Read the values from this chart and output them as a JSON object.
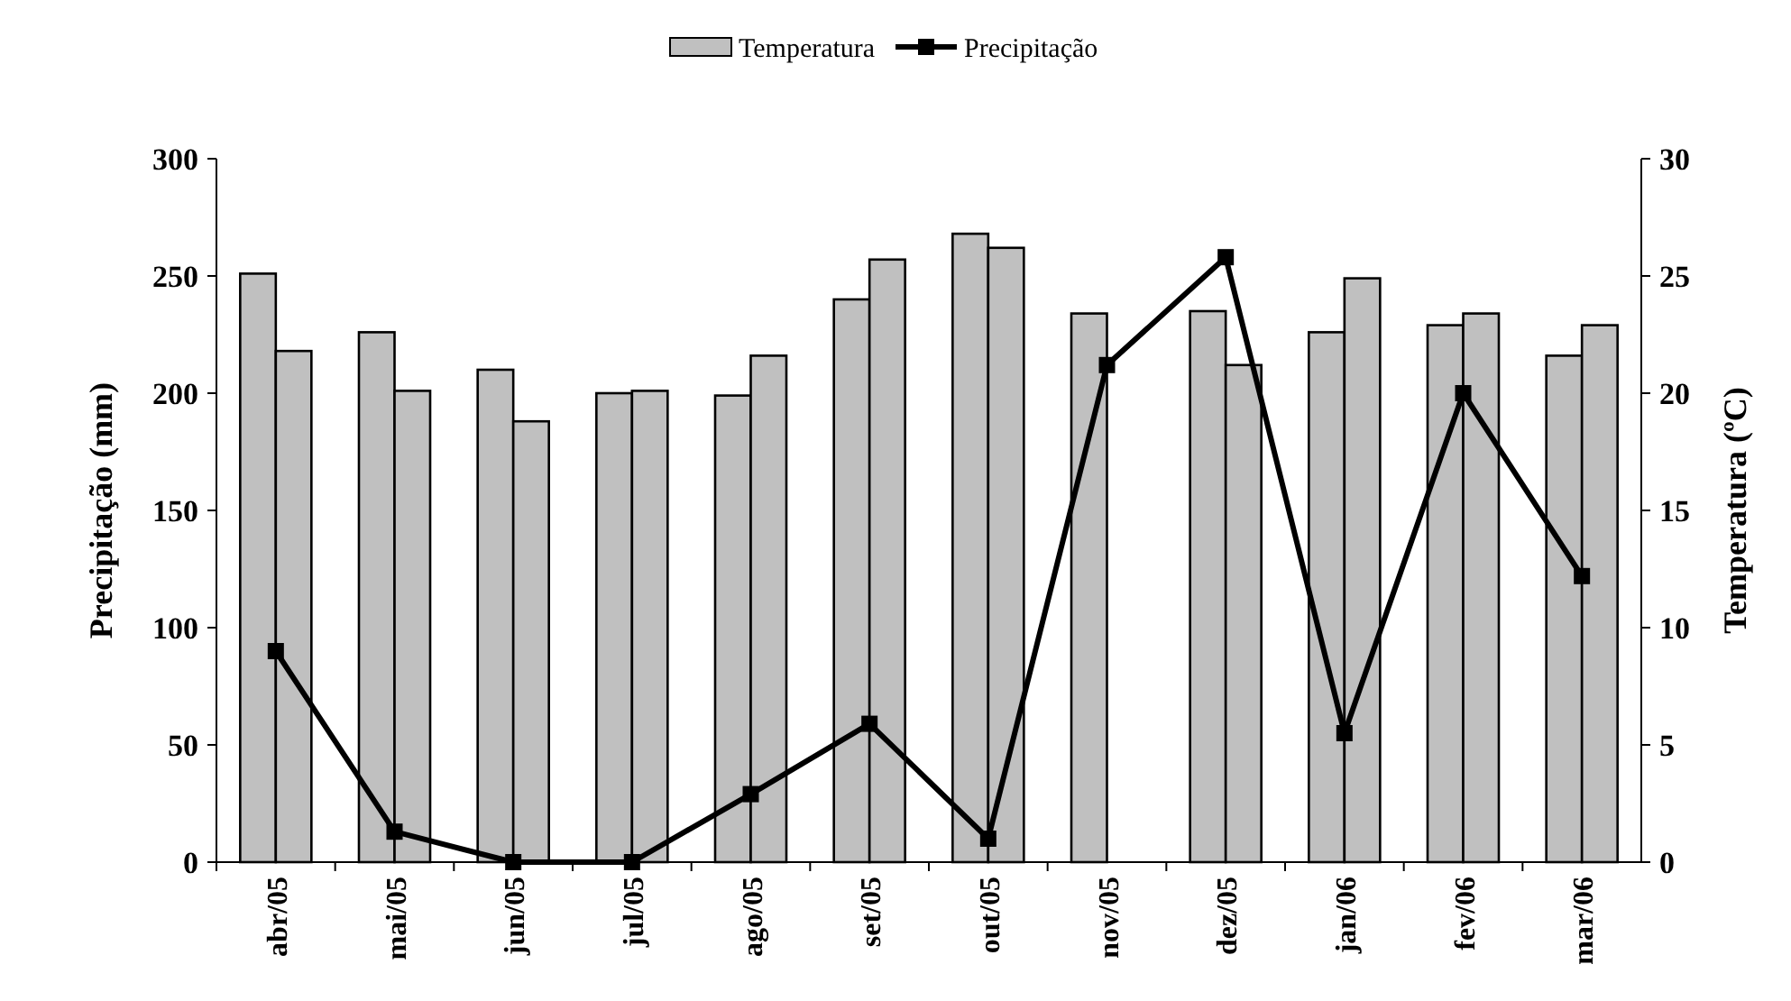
{
  "chart_data": {
    "type": "bar",
    "categories": [
      "abr/05",
      "mai/05",
      "jun/05",
      "jul/05",
      "ago/05",
      "set/05",
      "out/05",
      "nov/05",
      "dez/05",
      "jan/06",
      "fev/06",
      "mar/06"
    ],
    "series": [
      {
        "name": "Temperatura",
        "axis": "y2",
        "color": "#c0c0c0",
        "values": [
          25.1,
          22.6,
          21.0,
          20.0,
          19.9,
          24.0,
          26.8,
          23.4,
          23.5,
          22.6,
          22.9,
          21.6
        ]
      },
      {
        "axis": "y2",
        "color": "#c0c0c0",
        "values": [
          21.8,
          20.1,
          18.8,
          20.1,
          21.6,
          25.7,
          26.2,
          null,
          21.2,
          24.9,
          23.4,
          22.9
        ]
      },
      {
        "name": "Precipitação",
        "type": "line",
        "color": "#000000",
        "marker": "square",
        "values": [
          90,
          13,
          0,
          0,
          29,
          59,
          10,
          212,
          258,
          55,
          200,
          122
        ]
      }
    ],
    "ylabel": "Precipitação (mm)",
    "y2label": "Temperatura (ºC)",
    "ylim": [
      0,
      300
    ],
    "yticks": [
      0,
      50,
      100,
      150,
      200,
      250,
      300
    ],
    "y2lim": [
      0,
      30
    ],
    "y2ticks": [
      0,
      5,
      10,
      15,
      20,
      25,
      30
    ],
    "legend": "top",
    "grid": false
  }
}
